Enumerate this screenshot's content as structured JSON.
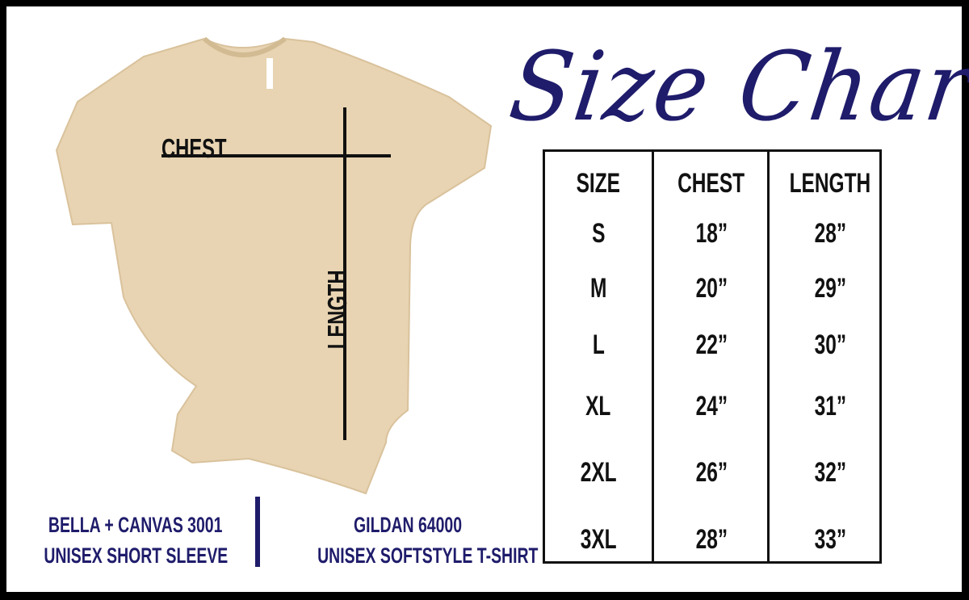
{
  "title": "Size Chart",
  "diagram": {
    "chest_label": "CHEST",
    "length_label": "LENGTH",
    "shirt_color": "#e8d4b2"
  },
  "table": {
    "headers": [
      "SIZE",
      "CHEST",
      "LENGTH"
    ],
    "rows": [
      [
        "S",
        "18”",
        "28”"
      ],
      [
        "M",
        "20”",
        "29”"
      ],
      [
        "L",
        "22”",
        "30”"
      ],
      [
        "XL",
        "24”",
        "31”"
      ],
      [
        "2XL",
        "26”",
        "32”"
      ],
      [
        "3XL",
        "28”",
        "33”"
      ]
    ]
  },
  "footer": {
    "left": [
      "BELLA + CANVAS 3001",
      "UNISEX SHORT SLEEVE"
    ],
    "right": [
      "GILDAN 64000",
      "UNISEX SOFTSTYLE T-SHIRT"
    ]
  },
  "colors": {
    "navy": "#1f1c6b",
    "border": "#000000"
  }
}
